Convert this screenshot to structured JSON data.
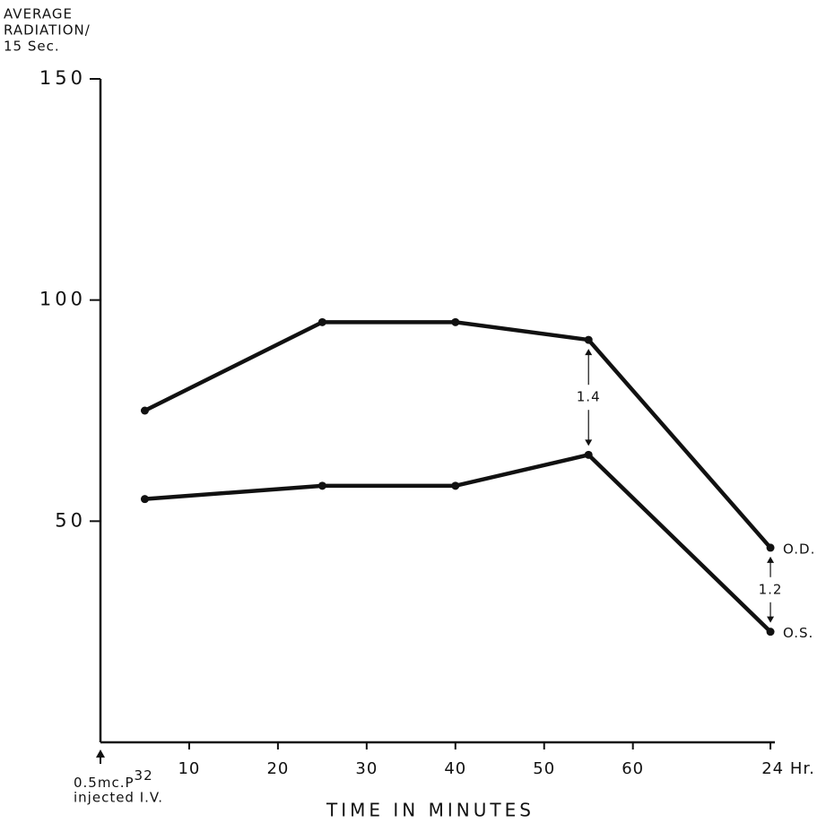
{
  "chart_data": {
    "type": "line",
    "ylabel": [
      "AVERAGE",
      "RADIATION/",
      "15 Sec."
    ],
    "xlabel": "TIME IN MINUTES",
    "x": [
      5,
      25,
      40,
      55,
      75.5
    ],
    "series": [
      {
        "name": "O.D.",
        "color": "#111111",
        "values": [
          75,
          95,
          95,
          91,
          44
        ]
      },
      {
        "name": "O.S.",
        "color": "#111111",
        "values": [
          55,
          58,
          58,
          65,
          25
        ]
      }
    ],
    "xlim": [
      0,
      76
    ],
    "xticks": [
      10,
      20,
      30,
      40,
      50,
      60,
      {
        "value": 75.5,
        "label": "24 Hr."
      }
    ],
    "ylim": [
      0,
      150
    ],
    "yticks": [
      50,
      100,
      150
    ],
    "annotations": [
      {
        "text": "1.4",
        "x": 55
      },
      {
        "text": "1.2",
        "x": 75.5
      }
    ],
    "injection_note": {
      "text": "0.5mc.P",
      "superscript": "32",
      "second_line": "injected I.V."
    }
  }
}
